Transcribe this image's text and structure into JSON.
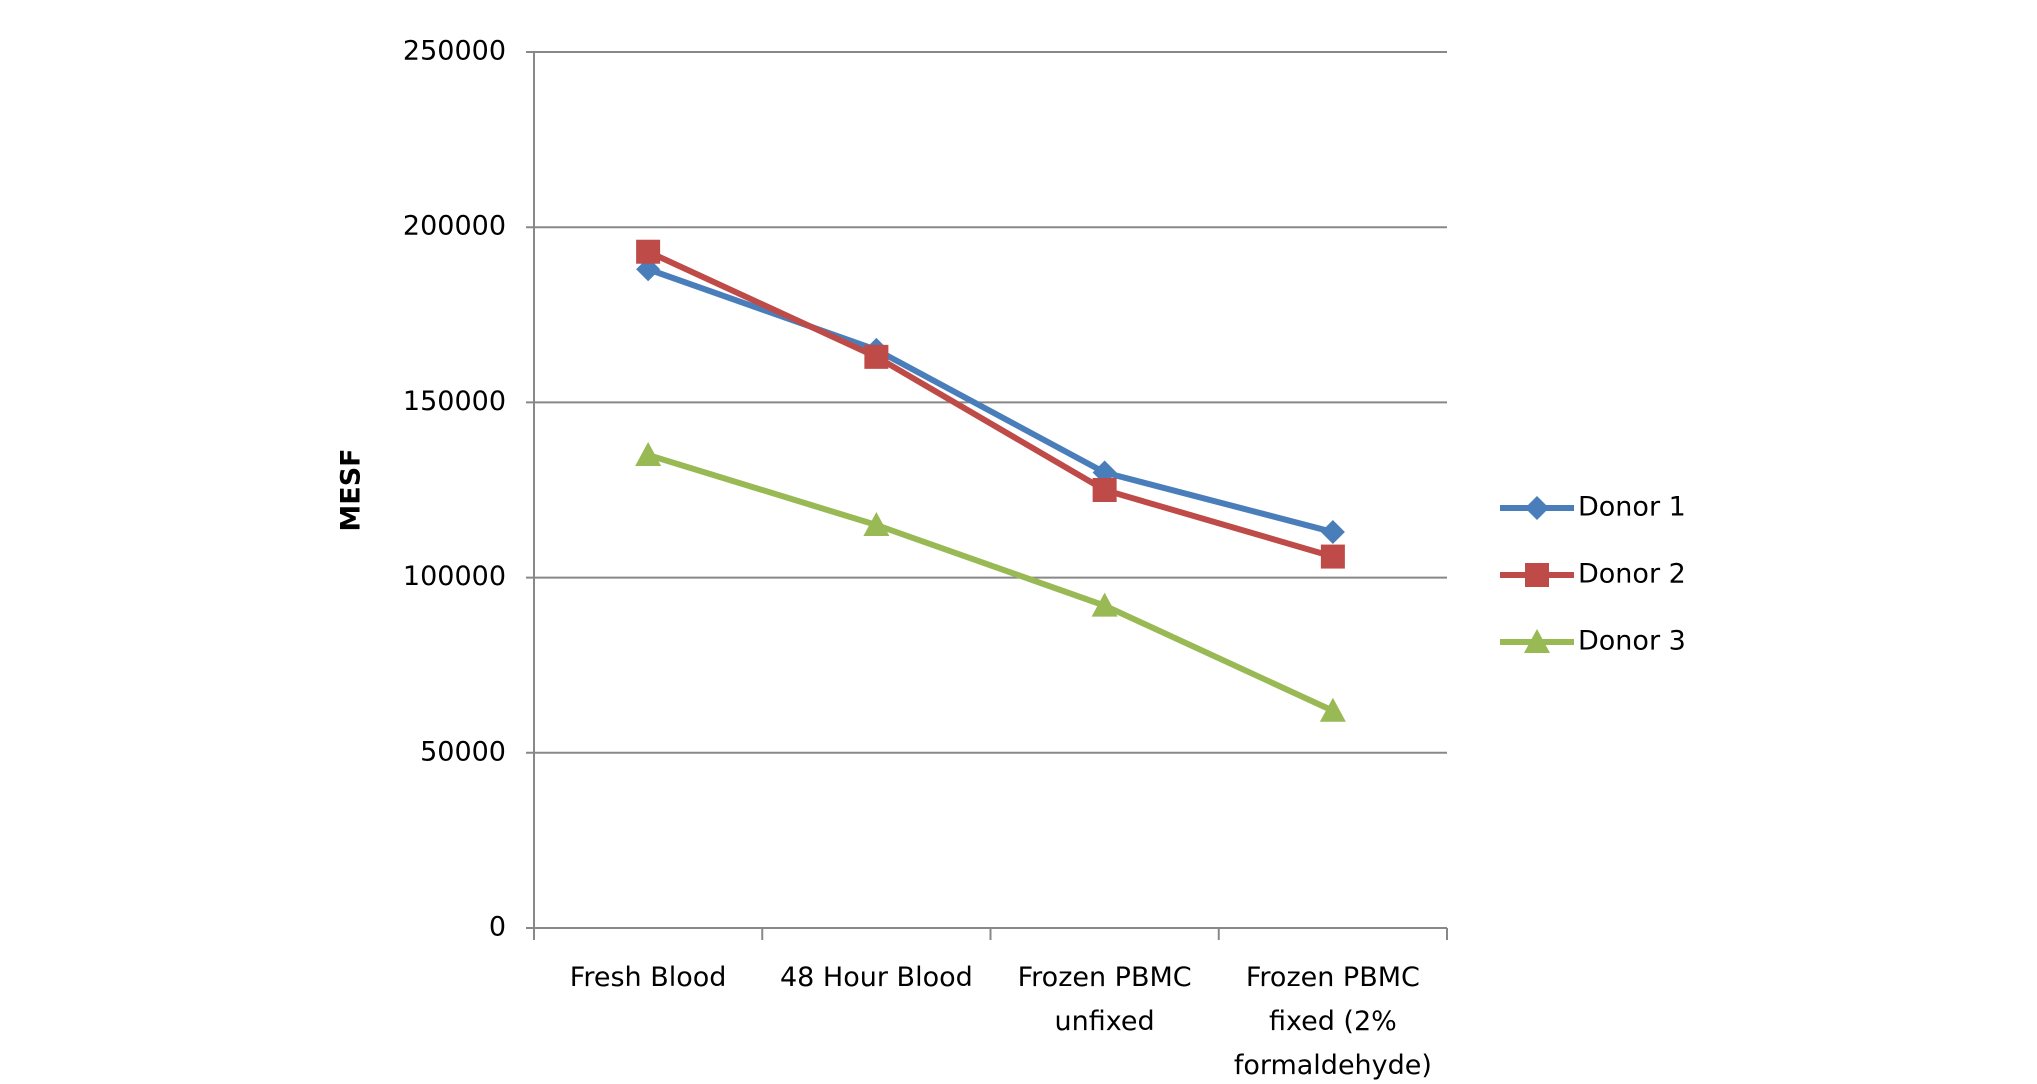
{
  "chart_data": {
    "type": "line",
    "y_label": "MESF",
    "categories": [
      "Fresh Blood",
      "48 Hour Blood",
      "Frozen PBMC unfixed",
      "Frozen PBMC fixed (2% formaldehyde)"
    ],
    "series": [
      {
        "name": "Donor 1",
        "color": "#4a7ebb",
        "marker": "diamond",
        "values": [
          188000,
          165000,
          130000,
          113000
        ]
      },
      {
        "name": "Donor 2",
        "color": "#be4b48",
        "marker": "square",
        "values": [
          193000,
          163000,
          125000,
          106000
        ]
      },
      {
        "name": "Donor 3",
        "color": "#98b954",
        "marker": "triangle",
        "values": [
          135000,
          115000,
          92000,
          62000
        ]
      }
    ],
    "ylim": [
      0,
      250000
    ],
    "yticks": [
      0,
      50000,
      100000,
      150000,
      200000,
      250000
    ],
    "grid": true,
    "legend": "right"
  }
}
